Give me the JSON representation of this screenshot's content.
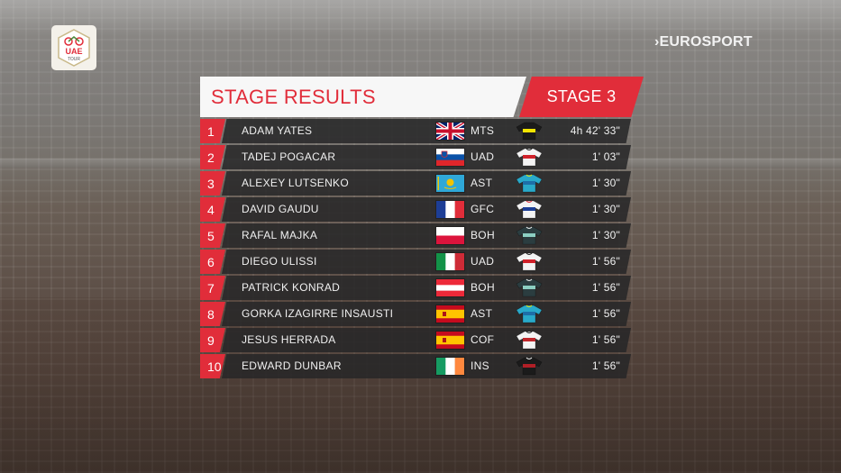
{
  "race_logo_text": [
    "UAE",
    "TOUR"
  ],
  "broadcaster": "EUROSPORT",
  "board": {
    "title": "STAGE RESULTS",
    "stage": "STAGE 3"
  },
  "colors": {
    "accent_red": "#e12d3a",
    "row_bg": "#262628",
    "text": "#f0f0f0"
  },
  "results": [
    {
      "pos": "1",
      "name": "ADAM YATES",
      "flag": "gb",
      "team": "MTS",
      "jersey": "mts-jersey-icon",
      "time": "4h 42' 33\""
    },
    {
      "pos": "2",
      "name": "TADEJ POGACAR",
      "flag": "si",
      "team": "UAD",
      "jersey": "uad-jersey-icon",
      "time": "1' 03\""
    },
    {
      "pos": "3",
      "name": "ALEXEY LUTSENKO",
      "flag": "kz",
      "team": "AST",
      "jersey": "ast-jersey-icon",
      "time": "1' 30\""
    },
    {
      "pos": "4",
      "name": "DAVID GAUDU",
      "flag": "fr",
      "team": "GFC",
      "jersey": "gfc-jersey-icon",
      "time": "1' 30\""
    },
    {
      "pos": "5",
      "name": "RAFAL MAJKA",
      "flag": "pl",
      "team": "BOH",
      "jersey": "boh-jersey-icon",
      "time": "1' 30\""
    },
    {
      "pos": "6",
      "name": "DIEGO ULISSI",
      "flag": "it",
      "team": "UAD",
      "jersey": "uad-jersey-icon",
      "time": "1' 56\""
    },
    {
      "pos": "7",
      "name": "PATRICK KONRAD",
      "flag": "at",
      "team": "BOH",
      "jersey": "boh-jersey-icon",
      "time": "1' 56\""
    },
    {
      "pos": "8",
      "name": "GORKA IZAGIRRE INSAUSTI",
      "flag": "es",
      "team": "AST",
      "jersey": "ast-jersey-icon",
      "time": "1' 56\""
    },
    {
      "pos": "9",
      "name": "JESUS HERRADA",
      "flag": "es",
      "team": "COF",
      "jersey": "cof-jersey-icon",
      "time": "1' 56\""
    },
    {
      "pos": "10",
      "name": "EDWARD DUNBAR",
      "flag": "ie",
      "team": "INS",
      "jersey": "ins-jersey-icon",
      "time": "1' 56\""
    }
  ]
}
